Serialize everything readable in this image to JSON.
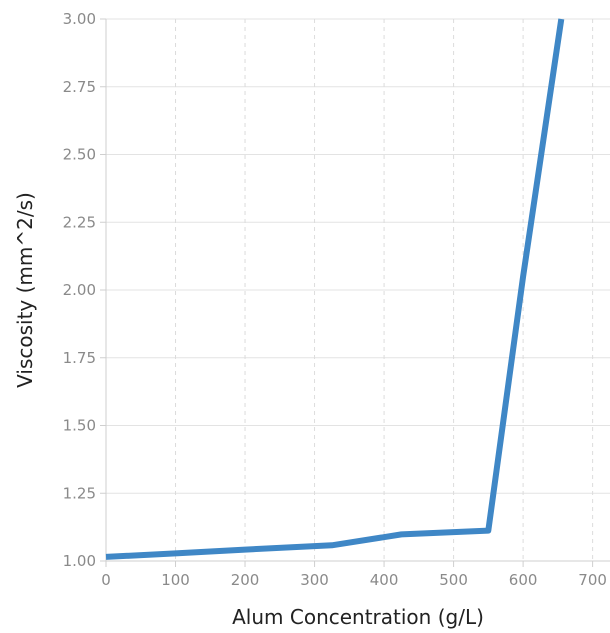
{
  "chart_data": {
    "type": "line",
    "title": "",
    "xlabel": "Alum Concentration (g/L)",
    "ylabel": "Viscosity (mm^2/s)",
    "xlim": [
      0,
      725
    ],
    "ylim": [
      1.0,
      3.0
    ],
    "x_ticks": [
      0,
      100,
      200,
      300,
      400,
      500,
      600,
      700
    ],
    "x_tick_labels": [
      "0",
      "100",
      "200",
      "300",
      "400",
      "500",
      "600",
      "700"
    ],
    "y_ticks": [
      1.0,
      1.25,
      1.5,
      1.75,
      2.0,
      2.25,
      2.5,
      2.75,
      3.0
    ],
    "y_tick_labels": [
      "1.00",
      "1.25",
      "1.50",
      "1.75",
      "2.00",
      "2.25",
      "2.50",
      "2.75",
      "3.00"
    ],
    "grid": {
      "x": "dashed",
      "y": "solid"
    },
    "series": [
      {
        "color": "#3f87c6",
        "x": [
          0,
          100,
          200,
          325,
          425,
          550,
          600,
          655
        ],
        "y": [
          1.015,
          1.028,
          1.042,
          1.058,
          1.098,
          1.112,
          2.05,
          3.0
        ]
      }
    ]
  }
}
